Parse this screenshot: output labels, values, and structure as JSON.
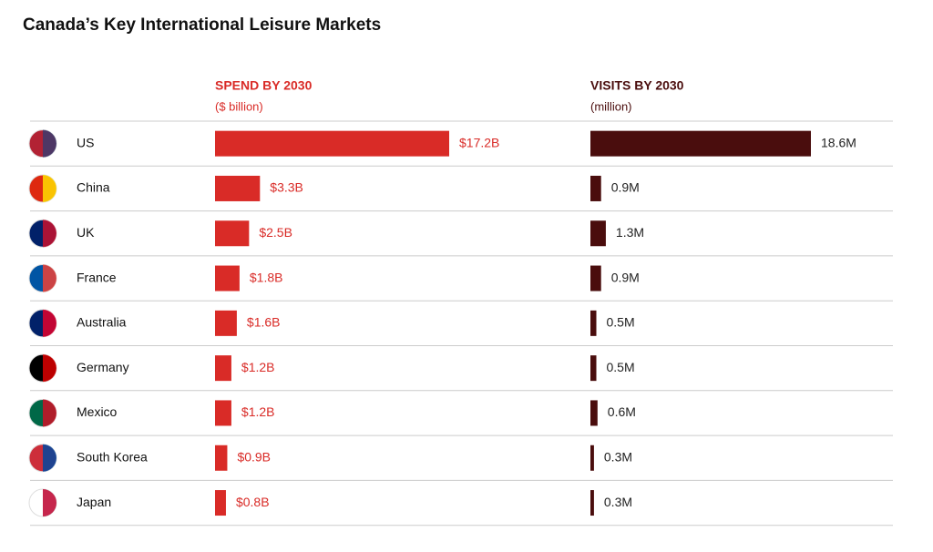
{
  "chart_data": {
    "type": "bar",
    "title": "Canada’s Key International Leisure Markets",
    "categories": [
      "US",
      "China",
      "UK",
      "France",
      "Australia",
      "Germany",
      "Mexico",
      "South Korea",
      "Japan"
    ],
    "series": [
      {
        "name": "SPEND BY 2030",
        "subtitle": "($ billion)",
        "color": "#d92b27",
        "values": [
          17.2,
          3.3,
          2.5,
          1.8,
          1.6,
          1.2,
          1.2,
          0.9,
          0.8
        ],
        "value_labels": [
          "$17.2B",
          "$3.3B",
          "$2.5B",
          "$1.8B",
          "$1.6B",
          "$1.2B",
          "$1.2B",
          "$0.9B",
          "$0.8B"
        ]
      },
      {
        "name": "VISITS BY 2030",
        "subtitle": "(million)",
        "color": "#4a0d0d",
        "values": [
          18.6,
          0.9,
          1.3,
          0.9,
          0.5,
          0.5,
          0.6,
          0.3,
          0.3
        ],
        "value_labels": [
          "18.6M",
          "0.9M",
          "1.3M",
          "0.9M",
          "0.5M",
          "0.5M",
          "0.6M",
          "0.3M",
          "0.3M"
        ]
      }
    ]
  }
}
